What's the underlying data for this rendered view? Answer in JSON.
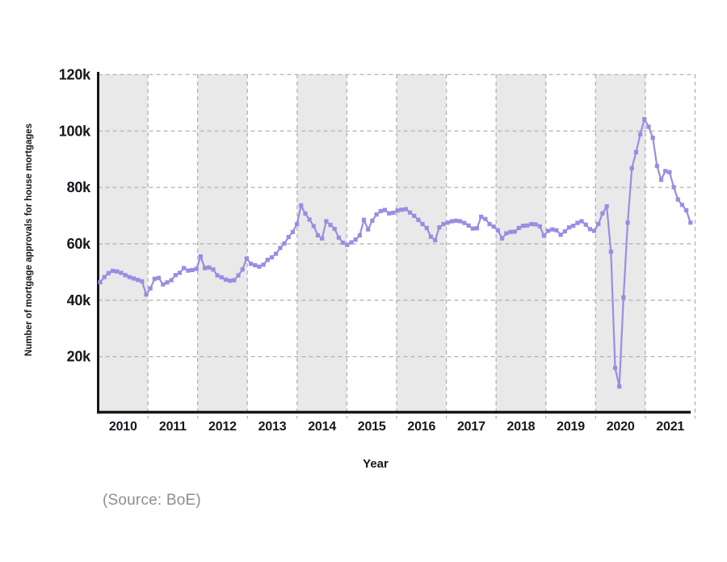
{
  "figure": {
    "xlabel": "Year",
    "ylabel": "Number of mortgage approvals for house mortgages",
    "source_note": "(Source: BoE)"
  },
  "chart_data": {
    "type": "line",
    "xlabel": "Year",
    "ylabel": "Number of mortgage approvals for house mortgages",
    "unit": "thousands of mortgage approvals per month",
    "x_monthly_range": "2010-01 to 2021-10",
    "x_tick_labels": [
      "2010",
      "2011",
      "2012",
      "2013",
      "2014",
      "2015",
      "2016",
      "2017",
      "2018",
      "2019",
      "2020",
      "2021"
    ],
    "y_ticks": [
      20,
      40,
      60,
      80,
      100,
      120
    ],
    "y_tick_labels": [
      "20k",
      "40k",
      "60k",
      "80k",
      "100k",
      "120k"
    ],
    "ylim_thousands": [
      0,
      120
    ],
    "grid": "dashed",
    "legend": "none",
    "shaded_year_bands": [
      "2010",
      "2012",
      "2014",
      "2016",
      "2018",
      "2020"
    ],
    "series": [
      {
        "name": "monthly-mortgage-approvals",
        "color": "#978ee3",
        "marker": "square",
        "values_thousands": [
          46.4,
          48.2,
          49.6,
          50.4,
          50.2,
          49.7,
          48.9,
          48.2,
          47.7,
          47.2,
          46.7,
          42.0,
          44.2,
          47.6,
          47.9,
          45.6,
          46.3,
          47.1,
          48.9,
          49.7,
          51.4,
          50.5,
          50.7,
          51.1,
          55.5,
          51.4,
          51.6,
          50.9,
          48.8,
          48.1,
          47.3,
          46.9,
          47.1,
          48.8,
          50.9,
          54.8,
          52.9,
          52.4,
          51.9,
          52.6,
          54.3,
          55.2,
          56.5,
          58.5,
          60.1,
          62.4,
          64.2,
          67.0,
          73.6,
          70.7,
          68.6,
          66.3,
          63.0,
          61.9,
          68.0,
          66.7,
          65.3,
          62.2,
          60.4,
          59.6,
          60.5,
          61.5,
          63.0,
          68.5,
          65.1,
          68.2,
          70.4,
          71.6,
          72.0,
          70.8,
          71.0,
          71.8,
          72.1,
          72.3,
          71.1,
          69.9,
          68.5,
          67.0,
          65.6,
          62.5,
          61.3,
          65.8,
          67.0,
          67.5,
          68.0,
          68.2,
          68.0,
          67.4,
          66.5,
          65.4,
          65.5,
          69.6,
          68.8,
          67.0,
          66.1,
          64.8,
          61.9,
          63.7,
          64.2,
          64.3,
          65.6,
          66.4,
          66.5,
          67.0,
          66.9,
          66.2,
          62.9,
          64.6,
          65.1,
          64.8,
          63.2,
          64.4,
          65.8,
          66.4,
          67.4,
          68.0,
          66.8,
          65.2,
          64.6,
          67.0,
          70.8,
          73.3,
          57.2,
          16.0,
          9.4,
          41.0,
          67.5,
          86.8,
          92.5,
          98.8,
          104.2,
          101.5,
          97.6,
          87.6,
          82.7,
          85.8,
          85.4,
          80.1,
          75.7,
          73.8,
          71.9,
          67.5
        ]
      }
    ]
  },
  "colors": {
    "line": "#978ee3",
    "band": "#e9e9e9",
    "grid": "#b2b2b2",
    "axis": "#16161d",
    "tick_text": "#16161d",
    "source_text": "#8d8d97",
    "background": "#ffffff"
  }
}
